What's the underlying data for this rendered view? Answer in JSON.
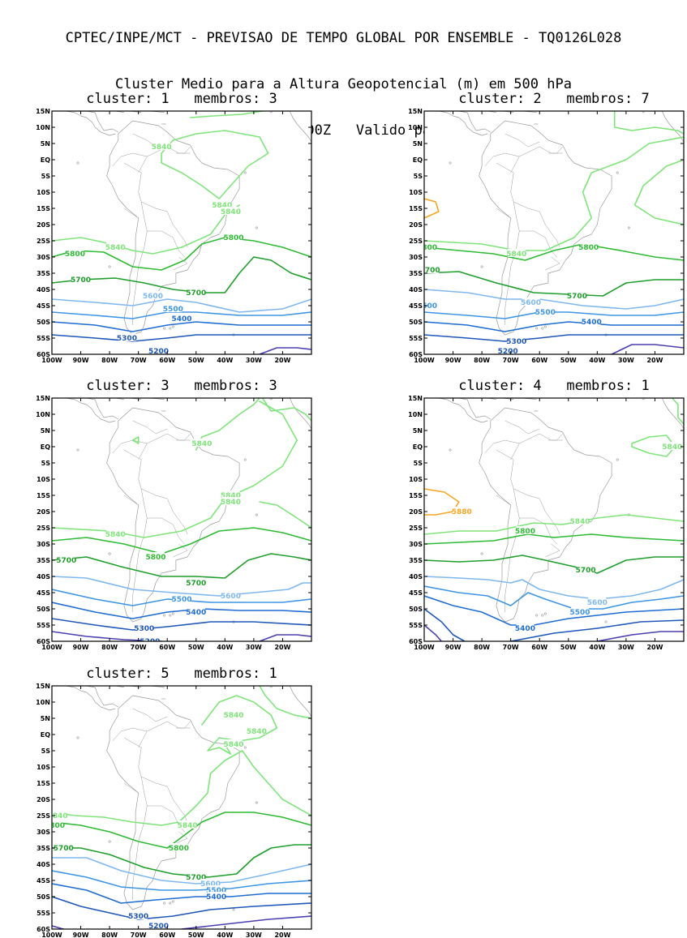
{
  "header": {
    "line1": "CPTEC/INPE/MCT - PREVISAO DE TEMPO GLOBAL POR ENSEMBLE - TQ0126L028",
    "line2": "Cluster Medio para a Altura Geopotencial (m) em 500 hPa",
    "line3": "Previsao de: 2020120100Z   Valido para: 2020120906Z"
  },
  "axes": {
    "lon_labels": [
      "100W",
      "90W",
      "80W",
      "70W",
      "60W",
      "50W",
      "40W",
      "30W",
      "20W"
    ],
    "lat_labels": [
      "15N",
      "10N",
      "5N",
      "EQ",
      "5S",
      "10S",
      "15S",
      "20S",
      "25S",
      "30S",
      "35S",
      "40S",
      "45S",
      "50S",
      "55S",
      "60S"
    ],
    "lon_range": [
      -100,
      -10
    ],
    "lat_range": [
      -60,
      15
    ]
  },
  "colors": {
    "5200": "#4b3fb0",
    "5300": "#1f57b8",
    "5400": "#1f6dd2",
    "5500": "#3d95e3",
    "5600": "#7eb8ee",
    "5700": "#1f9e2b",
    "5800": "#2fba34",
    "5840": "#7fe57a",
    "5880": "#f5a623",
    "coast": "#9a9a9a"
  },
  "panels": [
    {
      "title": "cluster: 1   membros: 3",
      "labels": [
        {
          "text": "5840",
          "lon": -62,
          "lat": 4,
          "color": "5840"
        },
        {
          "text": "5840",
          "lon": -78,
          "lat": -27,
          "color": "5840"
        },
        {
          "text": "5840",
          "lon": -41,
          "lat": -14,
          "color": "5840"
        },
        {
          "text": "5840",
          "lon": -38,
          "lat": -16,
          "color": "5840"
        },
        {
          "text": "5800",
          "lon": -92,
          "lat": -29,
          "color": "5800"
        },
        {
          "text": "5800",
          "lon": -37,
          "lat": -24,
          "color": "5800"
        },
        {
          "text": "5700",
          "lon": -90,
          "lat": -37,
          "color": "5700"
        },
        {
          "text": "5700",
          "lon": -50,
          "lat": -41,
          "color": "5700"
        },
        {
          "text": "5600",
          "lon": -65,
          "lat": -42,
          "color": "5600"
        },
        {
          "text": "5500",
          "lon": -58,
          "lat": -46,
          "color": "5500"
        },
        {
          "text": "5400",
          "lon": -55,
          "lat": -49,
          "color": "5400"
        },
        {
          "text": "5300",
          "lon": -74,
          "lat": -55,
          "color": "5300"
        },
        {
          "text": "5200",
          "lon": -63,
          "lat": -59,
          "color": "5300"
        }
      ]
    },
    {
      "title": "cluster: 2   membros: 7",
      "labels": [
        {
          "text": "5840",
          "lon": -68,
          "lat": -29,
          "color": "5840"
        },
        {
          "text": "5800",
          "lon": -99,
          "lat": -27,
          "color": "5800"
        },
        {
          "text": "5800",
          "lon": -43,
          "lat": -27,
          "color": "5800"
        },
        {
          "text": "5700",
          "lon": -98,
          "lat": -34,
          "color": "5700"
        },
        {
          "text": "5700",
          "lon": -47,
          "lat": -42,
          "color": "5700"
        },
        {
          "text": "5600",
          "lon": -63,
          "lat": -44,
          "color": "5600"
        },
        {
          "text": "5500",
          "lon": -99,
          "lat": -45,
          "color": "5500"
        },
        {
          "text": "5500",
          "lon": -58,
          "lat": -47,
          "color": "5500"
        },
        {
          "text": "5400",
          "lon": -42,
          "lat": -50,
          "color": "5400"
        },
        {
          "text": "5300",
          "lon": -68,
          "lat": -56,
          "color": "5300"
        },
        {
          "text": "5200",
          "lon": -71,
          "lat": -59,
          "color": "5300"
        }
      ]
    },
    {
      "title": "cluster: 3   membros: 3",
      "labels": [
        {
          "text": "5840",
          "lon": -48,
          "lat": 1,
          "color": "5840"
        },
        {
          "text": "5840",
          "lon": -38,
          "lat": -15,
          "color": "5840"
        },
        {
          "text": "5840",
          "lon": -38,
          "lat": -17,
          "color": "5840"
        },
        {
          "text": "5840",
          "lon": -78,
          "lat": -27,
          "color": "5840"
        },
        {
          "text": "5800",
          "lon": -64,
          "lat": -34,
          "color": "5800"
        },
        {
          "text": "5700",
          "lon": -95,
          "lat": -35,
          "color": "5700"
        },
        {
          "text": "5700",
          "lon": -50,
          "lat": -42,
          "color": "5700"
        },
        {
          "text": "5600",
          "lon": -38,
          "lat": -46,
          "color": "5600"
        },
        {
          "text": "5500",
          "lon": -55,
          "lat": -47,
          "color": "5500"
        },
        {
          "text": "5400",
          "lon": -50,
          "lat": -51,
          "color": "5400"
        },
        {
          "text": "5300",
          "lon": -68,
          "lat": -56,
          "color": "5300"
        },
        {
          "text": "5200",
          "lon": -66,
          "lat": -60,
          "color": "5300"
        }
      ]
    },
    {
      "title": "cluster: 4   membros: 1",
      "labels": [
        {
          "text": "5840",
          "lon": -14,
          "lat": 0,
          "color": "5840"
        },
        {
          "text": "5840",
          "lon": -46,
          "lat": -23,
          "color": "5840"
        },
        {
          "text": "5880",
          "lon": -87,
          "lat": -20,
          "color": "5880"
        },
        {
          "text": "5800",
          "lon": -65,
          "lat": -26,
          "color": "5800"
        },
        {
          "text": "5700",
          "lon": -44,
          "lat": -38,
          "color": "5700"
        },
        {
          "text": "5600",
          "lon": -40,
          "lat": -48,
          "color": "5600"
        },
        {
          "text": "5500",
          "lon": -46,
          "lat": -51,
          "color": "5500"
        },
        {
          "text": "5400",
          "lon": -65,
          "lat": -56,
          "color": "5400"
        }
      ]
    },
    {
      "title": "cluster: 5   membros: 1",
      "labels": [
        {
          "text": "5840",
          "lon": -37,
          "lat": 6,
          "color": "5840"
        },
        {
          "text": "5840",
          "lon": -29,
          "lat": 1,
          "color": "5840"
        },
        {
          "text": "5840",
          "lon": -37,
          "lat": -3,
          "color": "5840"
        },
        {
          "text": "5840",
          "lon": -98,
          "lat": -25,
          "color": "5840"
        },
        {
          "text": "5840",
          "lon": -53,
          "lat": -28,
          "color": "5840"
        },
        {
          "text": "5800",
          "lon": -99,
          "lat": -28,
          "color": "5800"
        },
        {
          "text": "5800",
          "lon": -56,
          "lat": -35,
          "color": "5800"
        },
        {
          "text": "5700",
          "lon": -96,
          "lat": -35,
          "color": "5700"
        },
        {
          "text": "5700",
          "lon": -50,
          "lat": -44,
          "color": "5700"
        },
        {
          "text": "5600",
          "lon": -45,
          "lat": -46,
          "color": "5600"
        },
        {
          "text": "5500",
          "lon": -43,
          "lat": -48,
          "color": "5500"
        },
        {
          "text": "5400",
          "lon": -43,
          "lat": -50,
          "color": "5400"
        },
        {
          "text": "5300",
          "lon": -70,
          "lat": -56,
          "color": "5300"
        },
        {
          "text": "5200",
          "lon": -63,
          "lat": -59,
          "color": "5300"
        }
      ]
    }
  ]
}
